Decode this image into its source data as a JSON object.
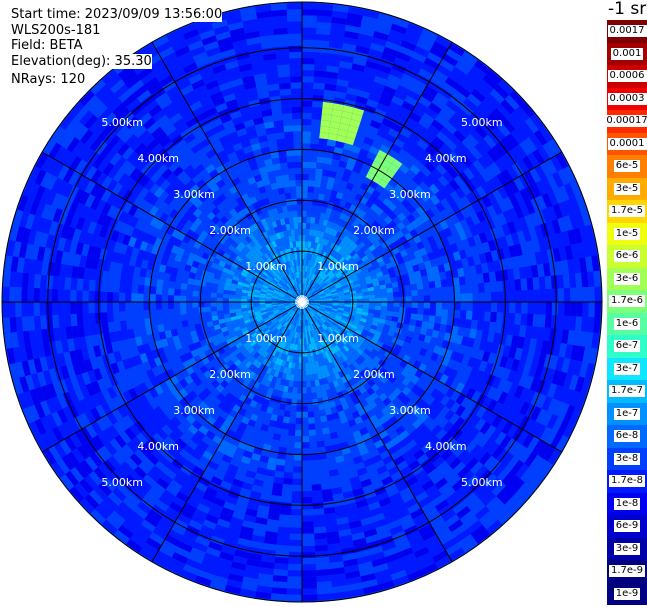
{
  "header": {
    "start_time": "Start time: 2023/09/09 13:56:00",
    "instrument": "WLS200s-181",
    "field": "Field: BETA",
    "elevation": "Elevation(deg): 35.30",
    "nrays": "NRays: 120"
  },
  "colorbar": {
    "unit": "-1 sr",
    "labels": [
      "0.0017",
      "0.001",
      "0.0006",
      "0.0003",
      "0.00017",
      "0.0001",
      "6e-5",
      "3e-5",
      "1.7e-5",
      "1e-5",
      "6e-6",
      "3e-6",
      "1.7e-6",
      "1e-6",
      "6e-7",
      "3e-7",
      "1.7e-7",
      "1e-7",
      "6e-8",
      "3e-8",
      "1.7e-8",
      "1e-8",
      "6e-9",
      "3e-9",
      "1.7e-9",
      "1e-9"
    ],
    "colors": [
      "#7f0000",
      "#a50000",
      "#cc0000",
      "#f10000",
      "#ff2900",
      "#ff5500",
      "#ff8000",
      "#ffab00",
      "#ffd600",
      "#f0ff0f",
      "#c9ff2e",
      "#a1ff56",
      "#7dff7a",
      "#56ffa1",
      "#2effc9",
      "#0fe5ff",
      "#00bbff",
      "#0091ff",
      "#0069ff",
      "#003ffd",
      "#0019ff",
      "#0000f1",
      "#0000cd",
      "#0000a8",
      "#000080",
      "#000080"
    ]
  },
  "chart_data": {
    "type": "ppi",
    "field": "BETA",
    "elevation_deg": 35.3,
    "nrays": 120,
    "range_ring_labels": [
      "1.00km",
      "2.00km",
      "3.00km",
      "4.00km",
      "5.00km"
    ],
    "range_rings_km": [
      1,
      2,
      3,
      4,
      5
    ],
    "max_range_km": 5.9,
    "azimuth_spokes_deg": [
      0,
      30,
      60,
      90,
      120,
      150,
      180,
      210,
      240,
      270,
      300,
      330
    ],
    "typical_value_by_range_km": [
      {
        "range_km": 0.5,
        "value": 1e-07
      },
      {
        "range_km": 1.0,
        "value": 1e-07
      },
      {
        "range_km": 1.5,
        "value": 6e-08
      },
      {
        "range_km": 2.0,
        "value": 3e-08
      },
      {
        "range_km": 3.0,
        "value": 3e-08
      },
      {
        "range_km": 4.0,
        "value": 1.7e-08
      },
      {
        "range_km": 5.0,
        "value": 1.7e-08
      },
      {
        "range_km": 5.9,
        "value": 1.7e-08
      }
    ],
    "features": [
      {
        "az_deg": 12,
        "range_km": [
          3.3,
          3.9
        ],
        "value": 3e-06
      },
      {
        "az_deg": 32,
        "range_km": [
          2.8,
          3.4
        ],
        "value": 1.7e-06
      }
    ],
    "colorbar_range": [
      1e-09,
      0.0017
    ]
  }
}
